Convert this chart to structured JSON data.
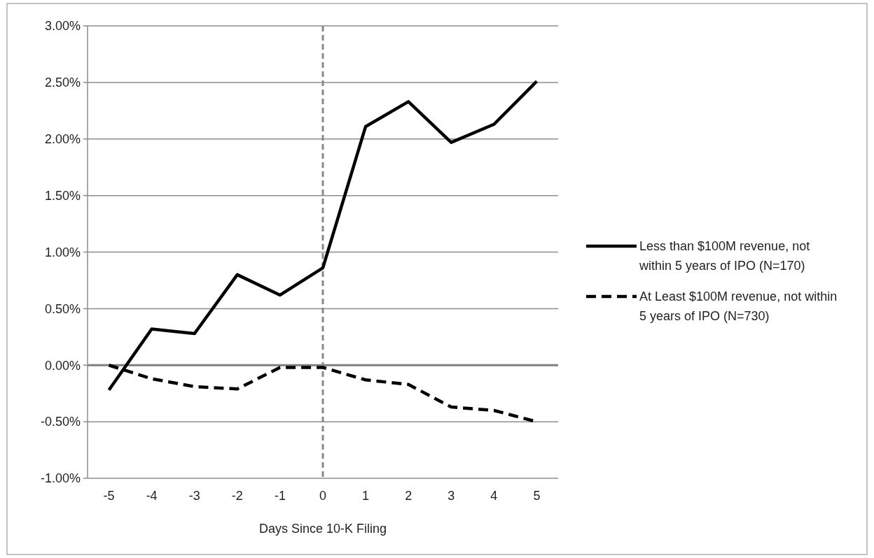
{
  "chart_data": {
    "type": "line",
    "xlabel": "Days Since 10-K Filing",
    "categories": [
      "-5",
      "-4",
      "-3",
      "-2",
      "-1",
      "0",
      "1",
      "2",
      "3",
      "4",
      "5"
    ],
    "series": [
      {
        "name": "Less than $100M revenue, not within 5 years of IPO (N=170)",
        "color": "#000000",
        "line_style": "solid",
        "values": [
          -0.22,
          0.32,
          0.28,
          0.8,
          0.62,
          0.86,
          2.11,
          2.33,
          1.97,
          2.13,
          2.51
        ]
      },
      {
        "name": "At Least $100M revenue, not within 5 years of IPO (N=730)",
        "color": "#000000",
        "line_style": "dashed",
        "values": [
          0.0,
          -0.12,
          -0.19,
          -0.21,
          -0.02,
          -0.02,
          -0.13,
          -0.17,
          -0.37,
          -0.4,
          -0.5
        ]
      }
    ],
    "ylim": [
      -1,
      3
    ],
    "yticks": [
      {
        "value": -1,
        "label": "-1.00%"
      },
      {
        "value": -0.5,
        "label": "-0.50%"
      },
      {
        "value": 0,
        "label": "0.00%"
      },
      {
        "value": 0.5,
        "label": "0.50%"
      },
      {
        "value": 1,
        "label": "1.00%"
      },
      {
        "value": 1.5,
        "label": "1.50%"
      },
      {
        "value": 2,
        "label": "2.00%"
      },
      {
        "value": 2.5,
        "label": "2.50%"
      },
      {
        "value": 3,
        "label": "3.00%"
      }
    ],
    "ref_lines": [
      {
        "axis": "x",
        "value": "0",
        "color": "#898989",
        "line_style": "dashed"
      }
    ],
    "grid": "y",
    "legend": "right",
    "marker": "none"
  }
}
